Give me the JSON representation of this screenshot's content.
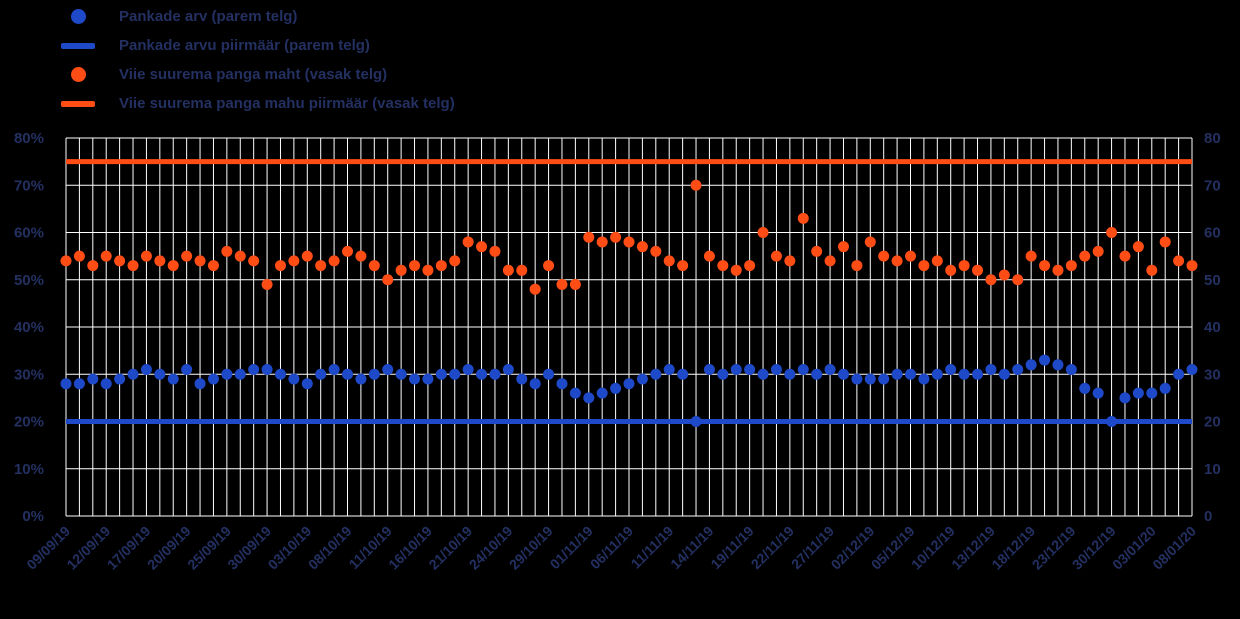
{
  "colors": {
    "background": "#000000",
    "grid": "#ffffff",
    "text": "#233061",
    "blue": "#1e49c8",
    "orange": "#ff4d15"
  },
  "legend": [
    {
      "label": "Pankade arv (parem telg)",
      "marker": "dot",
      "color": "#1e49c8"
    },
    {
      "label": "Pankade arvu piirmäär (parem telg)",
      "marker": "line",
      "color": "#1e49c8"
    },
    {
      "label": "Viie suurema panga maht (vasak telg)",
      "marker": "dot",
      "color": "#ff4d15"
    },
    {
      "label": "Viie suurema panga mahu piirmäär (vasak telg)",
      "marker": "line",
      "color": "#ff4d15"
    }
  ],
  "chart_data": {
    "type": "scatter",
    "title": "",
    "xlabel": "",
    "ylabel": "",
    "grid": true,
    "legend_position": "top-left",
    "x_tick_every": 3,
    "left_axis": {
      "min": 0,
      "max": 80,
      "ticks": [
        "0%",
        "10%",
        "20%",
        "30%",
        "40%",
        "50%",
        "60%",
        "70%",
        "80%"
      ]
    },
    "right_axis": {
      "min": 0,
      "max": 80,
      "ticks": [
        "0",
        "10",
        "20",
        "30",
        "40",
        "50",
        "60",
        "70",
        "80"
      ]
    },
    "x": [
      "09/09/19",
      "10/09/19",
      "11/09/19",
      "12/09/19",
      "13/09/19",
      "16/09/19",
      "17/09/19",
      "18/09/19",
      "19/09/19",
      "20/09/19",
      "23/09/19",
      "24/09/19",
      "25/09/19",
      "26/09/19",
      "27/09/19",
      "30/09/19",
      "01/10/19",
      "02/10/19",
      "03/10/19",
      "04/10/19",
      "07/10/19",
      "08/10/19",
      "09/10/19",
      "10/10/19",
      "11/10/19",
      "14/10/19",
      "15/10/19",
      "16/10/19",
      "17/10/19",
      "18/10/19",
      "21/10/19",
      "22/10/19",
      "23/10/19",
      "24/10/19",
      "25/10/19",
      "28/10/19",
      "29/10/19",
      "30/10/19",
      "31/10/19",
      "01/11/19",
      "04/11/19",
      "05/11/19",
      "06/11/19",
      "07/11/19",
      "08/11/19",
      "11/11/19",
      "12/11/19",
      "13/11/19",
      "14/11/19",
      "15/11/19",
      "18/11/19",
      "19/11/19",
      "20/11/19",
      "21/11/19",
      "22/11/19",
      "25/11/19",
      "26/11/19",
      "27/11/19",
      "28/11/19",
      "29/11/19",
      "02/12/19",
      "03/12/19",
      "04/12/19",
      "05/12/19",
      "06/12/19",
      "09/12/19",
      "10/12/19",
      "11/12/19",
      "12/12/19",
      "13/12/19",
      "16/12/19",
      "17/12/19",
      "18/12/19",
      "19/12/19",
      "20/12/19",
      "23/12/19",
      "24/12/19",
      "27/12/19",
      "30/12/19",
      "31/12/19",
      "02/01/20",
      "03/01/20",
      "06/01/20",
      "07/01/20",
      "08/01/20"
    ],
    "series": [
      {
        "name": "Viie suurema panga maht (vasak telg)",
        "axis": "left",
        "style": "points",
        "color": "#ff4d15",
        "values": [
          54,
          55,
          53,
          55,
          54,
          53,
          55,
          54,
          53,
          55,
          54,
          53,
          56,
          55,
          54,
          49,
          53,
          54,
          55,
          53,
          54,
          56,
          55,
          53,
          50,
          52,
          53,
          52,
          53,
          54,
          58,
          57,
          56,
          52,
          52,
          48,
          53,
          49,
          49,
          59,
          58,
          59,
          58,
          57,
          56,
          54,
          53,
          70,
          55,
          53,
          52,
          53,
          60,
          55,
          54,
          63,
          56,
          54,
          57,
          53,
          58,
          55,
          54,
          55,
          53,
          54,
          52,
          53,
          52,
          50,
          51,
          50,
          55,
          53,
          52,
          53,
          55,
          56,
          60,
          55,
          57,
          52,
          58,
          54,
          53
        ]
      },
      {
        "name": "Viie suurema panga mahu piirmäär (vasak telg)",
        "axis": "left",
        "style": "hline",
        "color": "#ff4d15",
        "value": 75
      },
      {
        "name": "Pankade arv (parem telg)",
        "axis": "right",
        "style": "points",
        "color": "#1e49c8",
        "values": [
          28,
          28,
          29,
          28,
          29,
          30,
          31,
          30,
          29,
          31,
          28,
          29,
          30,
          30,
          31,
          31,
          30,
          29,
          28,
          30,
          31,
          30,
          29,
          30,
          31,
          30,
          29,
          29,
          30,
          30,
          31,
          30,
          30,
          31,
          29,
          28,
          30,
          28,
          26,
          25,
          26,
          27,
          28,
          29,
          30,
          31,
          30,
          20,
          31,
          30,
          31,
          31,
          30,
          31,
          30,
          31,
          30,
          31,
          30,
          29,
          29,
          29,
          30,
          30,
          29,
          30,
          31,
          30,
          30,
          31,
          30,
          31,
          32,
          33,
          32,
          31,
          27,
          26,
          20,
          25,
          26,
          26,
          27,
          30,
          31
        ]
      },
      {
        "name": "Pankade arvu piirmäär (parem telg)",
        "axis": "right",
        "style": "hline",
        "color": "#1e49c8",
        "value": 20
      }
    ]
  }
}
